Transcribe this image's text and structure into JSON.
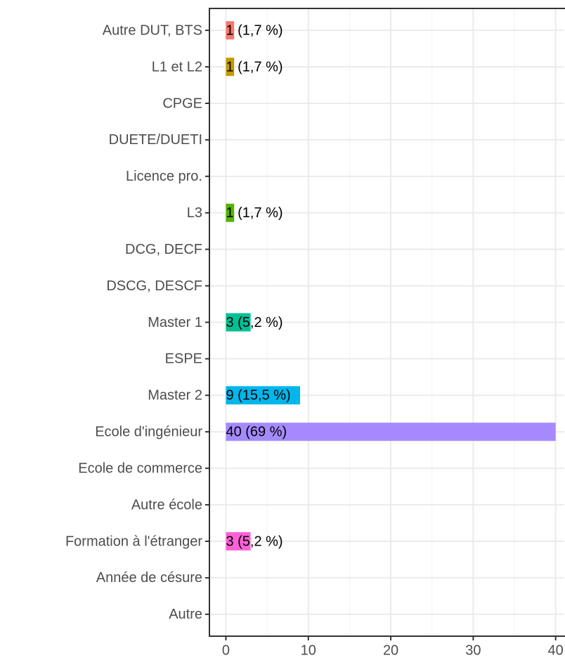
{
  "chart_data": {
    "type": "bar",
    "orientation": "horizontal",
    "categories": [
      "Autre DUT, BTS",
      "L1 et L2",
      "CPGE",
      "DUETE/DUETI",
      "Licence pro.",
      "L3",
      "DCG, DECF",
      "DSCG, DESCF",
      "Master 1",
      "ESPE",
      "Master 2",
      "Ecole d'ingénieur",
      "Ecole de commerce",
      "Autre école",
      "Formation à l'étranger",
      "Année de césure",
      "Autre"
    ],
    "values": [
      1,
      1,
      0,
      0,
      0,
      1,
      0,
      0,
      3,
      0,
      9,
      40,
      0,
      0,
      3,
      0,
      0
    ],
    "value_labels": [
      "1 (1,7 %)",
      "1 (1,7 %)",
      null,
      null,
      null,
      "1 (1,7 %)",
      null,
      null,
      "3 (5,2 %)",
      null,
      "9 (15,5 %)",
      "40 (69 %)",
      null,
      null,
      "3 (5,2 %)",
      null,
      null
    ],
    "colors": [
      "#F8766D",
      "#C49A00",
      null,
      null,
      null,
      "#53B400",
      null,
      null,
      "#00C094",
      null,
      "#00B6EB",
      "#A58AFF",
      null,
      null,
      "#FB61D7",
      null,
      null
    ],
    "xlim": [
      -2,
      41.05
    ],
    "xticks": [
      0,
      10,
      20,
      30,
      40
    ],
    "xminor_ticks": [
      5,
      15,
      25,
      35
    ],
    "grid": true
  }
}
